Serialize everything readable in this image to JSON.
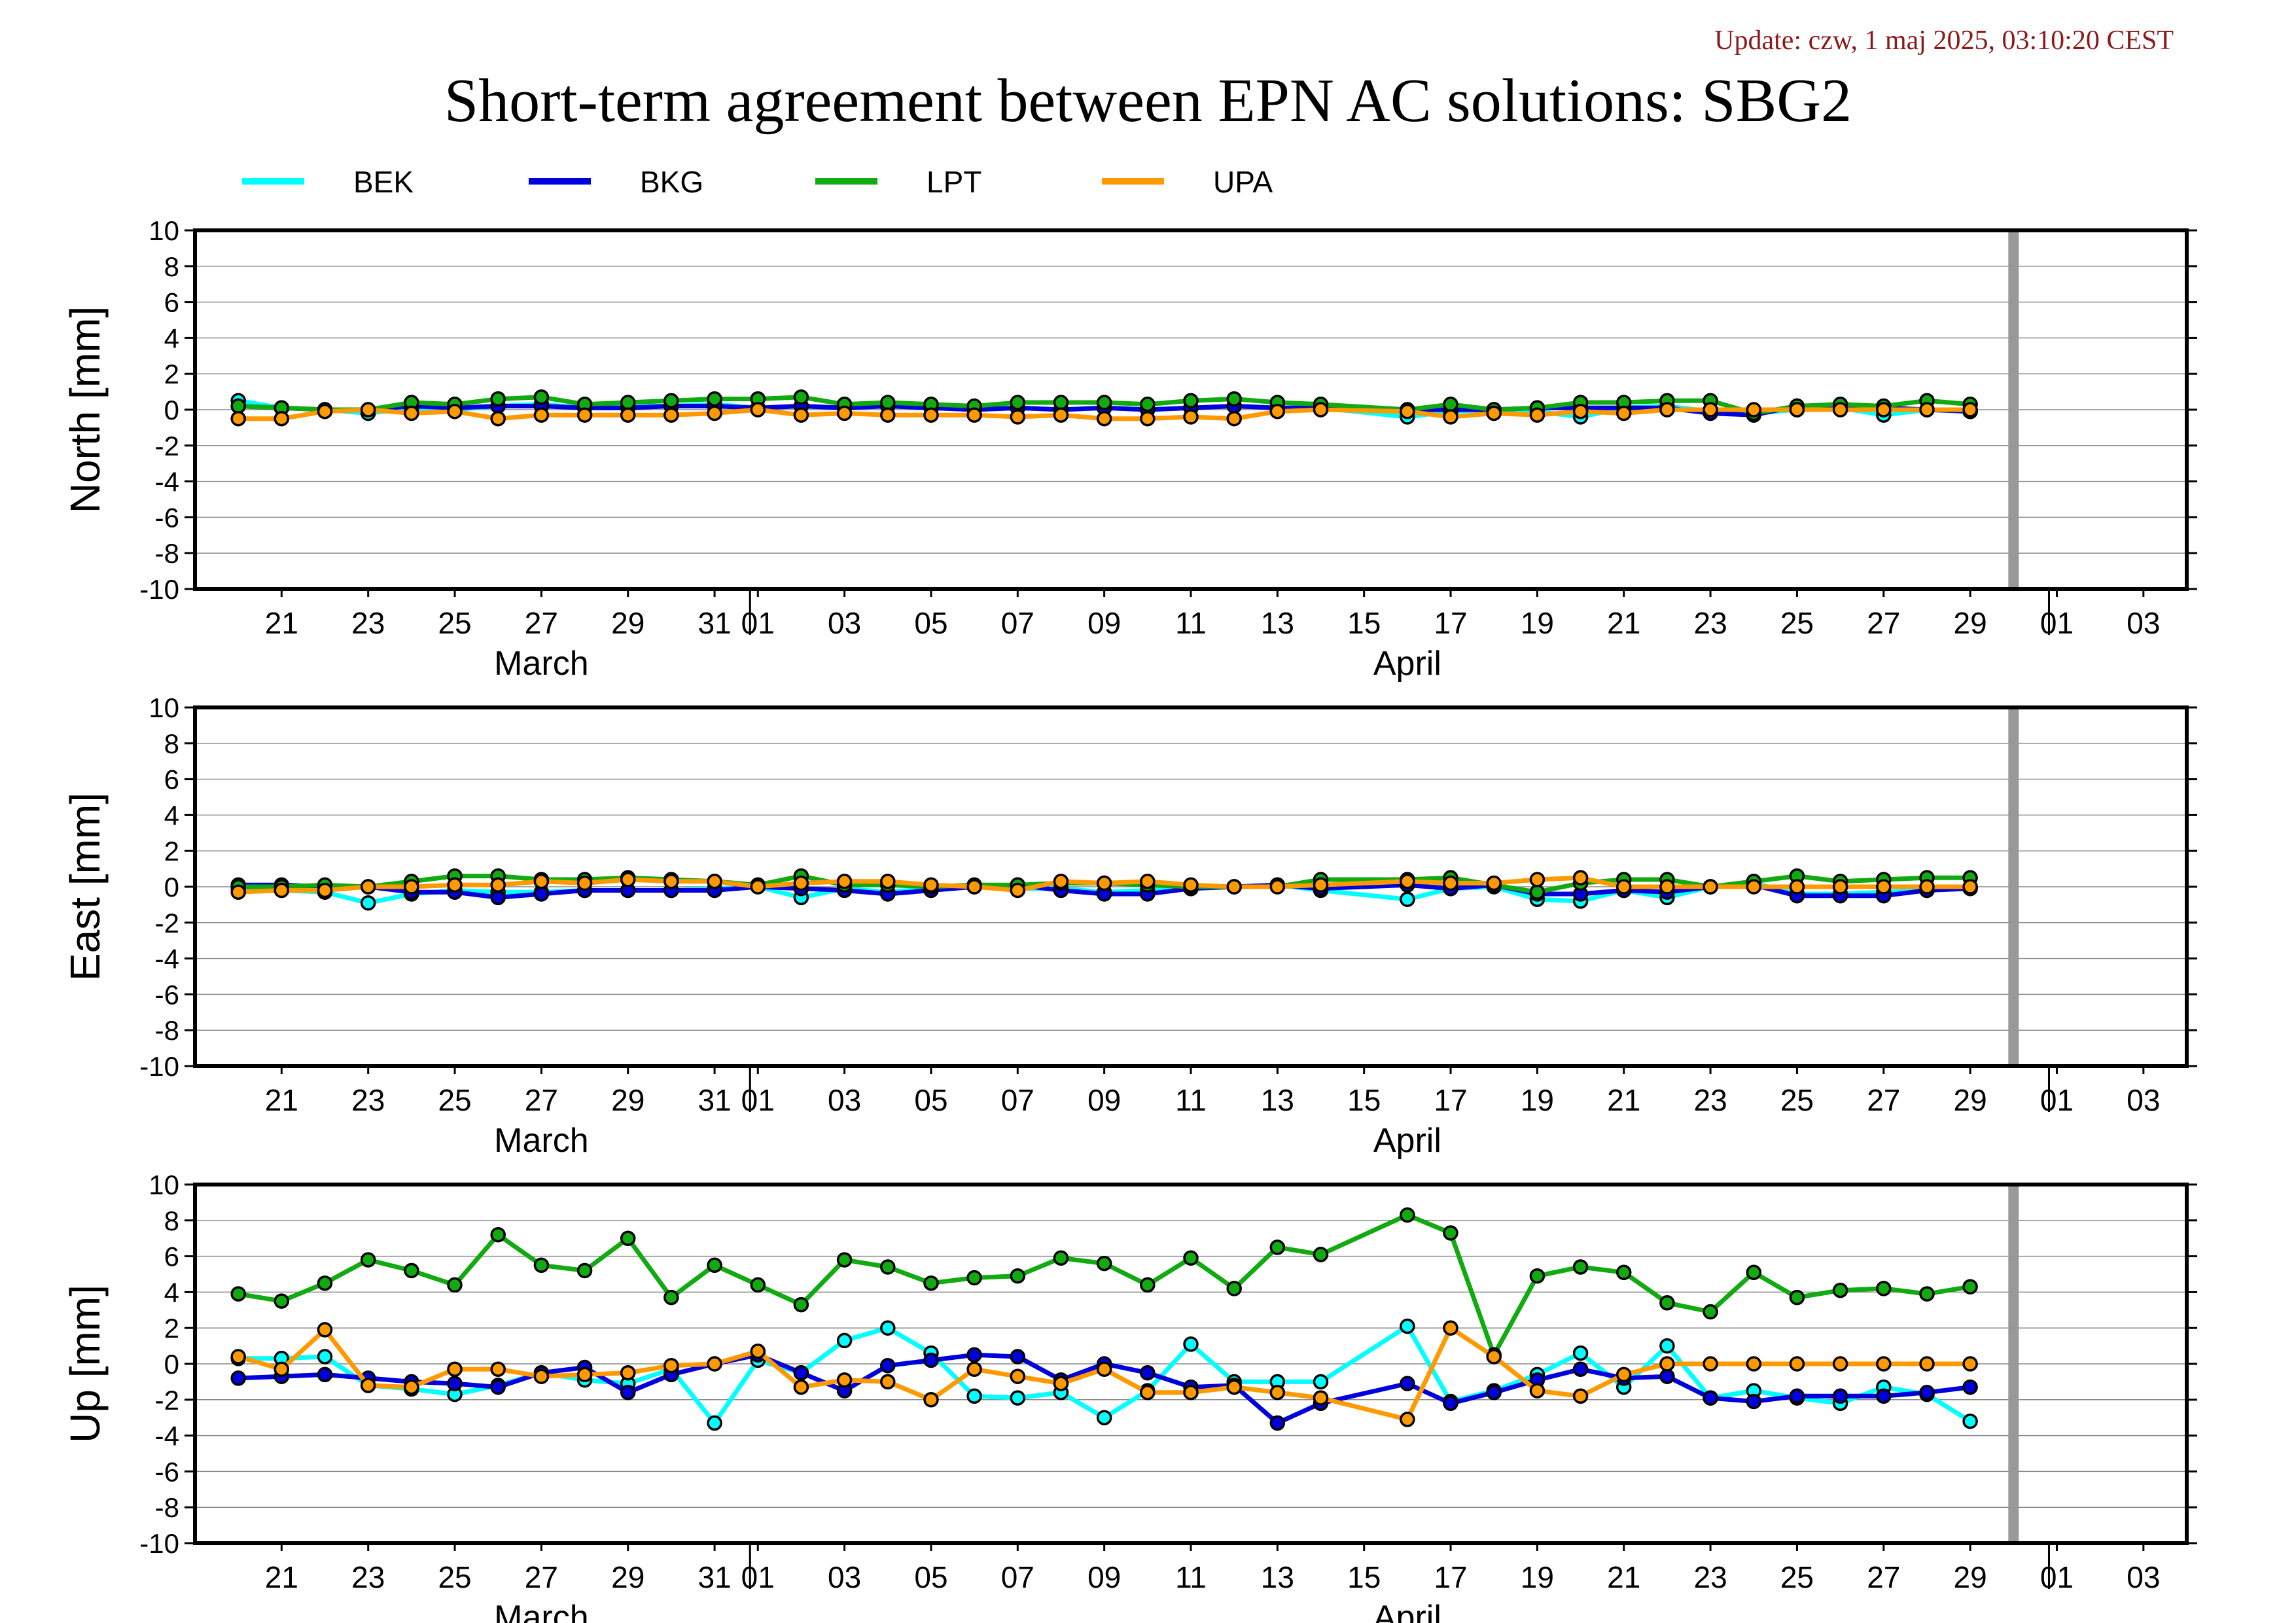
{
  "update": "Update: czw, 1 maj 2025, 03:10:20 CEST",
  "title": "Short-term agreement between EPN AC solutions: SBG2",
  "colors": {
    "BEK": "#00ffff",
    "BKG": "#0000dd",
    "LPT": "#11aa11",
    "UPA": "#ff9900"
  },
  "legend": [
    {
      "name": "BEK",
      "color": "#00ffff"
    },
    {
      "name": "BKG",
      "color": "#0000dd"
    },
    {
      "name": "LPT",
      "color": "#11aa11"
    },
    {
      "name": "UPA",
      "color": "#ff9900"
    }
  ],
  "chart_data": [
    {
      "type": "line",
      "ylabel": "North [mm]",
      "ylim": [
        -10,
        10
      ],
      "yticks": [
        -10,
        -8,
        -6,
        -4,
        -2,
        0,
        2,
        4,
        6,
        8,
        10
      ],
      "xlim": [
        "2025-03-19",
        "2025-05-04"
      ],
      "x_tick_labels": [
        "21",
        "23",
        "25",
        "27",
        "29",
        "31",
        "01",
        "03",
        "05",
        "07",
        "09",
        "11",
        "13",
        "15",
        "17",
        "19",
        "21",
        "23",
        "25",
        "27",
        "29",
        "01",
        "03"
      ],
      "month_labels": [
        "March",
        "April"
      ],
      "grid": true,
      "marker_line_date": "2025-04-30",
      "x": [
        "2025-03-20",
        "2025-03-21",
        "2025-03-22",
        "2025-03-23",
        "2025-03-24",
        "2025-03-25",
        "2025-03-26",
        "2025-03-27",
        "2025-03-28",
        "2025-03-29",
        "2025-03-30",
        "2025-03-31",
        "2025-04-01",
        "2025-04-02",
        "2025-04-03",
        "2025-04-04",
        "2025-04-05",
        "2025-04-06",
        "2025-04-07",
        "2025-04-08",
        "2025-04-09",
        "2025-04-10",
        "2025-04-11",
        "2025-04-12",
        "2025-04-13",
        "2025-04-14",
        "2025-04-16",
        "2025-04-17",
        "2025-04-18",
        "2025-04-19",
        "2025-04-20",
        "2025-04-21",
        "2025-04-22",
        "2025-04-23",
        "2025-04-24",
        "2025-04-25",
        "2025-04-26",
        "2025-04-27",
        "2025-04-28",
        "2025-04-29"
      ],
      "series": [
        {
          "name": "BEK",
          "values": [
            0.5,
            0.1,
            0.0,
            -0.2,
            0.1,
            0.0,
            0.2,
            0.3,
            0.1,
            0.2,
            0.2,
            0.3,
            0.1,
            0.2,
            0.1,
            0.2,
            0.1,
            0.0,
            0.1,
            0.0,
            0.1,
            0.0,
            0.1,
            0.2,
            0.1,
            0.1,
            -0.4,
            -0.1,
            0.0,
            -0.1,
            -0.4,
            0.1,
            0.2,
            -0.1,
            -0.2,
            0.0,
            0.1,
            -0.3,
            0.0,
            -0.1
          ]
        },
        {
          "name": "BKG",
          "values": [
            0.2,
            0.1,
            0.0,
            0.0,
            0.2,
            0.1,
            0.2,
            0.2,
            0.1,
            0.1,
            0.2,
            0.2,
            0.1,
            0.2,
            0.1,
            0.2,
            0.1,
            0.0,
            0.1,
            0.0,
            0.1,
            0.0,
            0.1,
            0.2,
            0.1,
            0.1,
            0.0,
            0.0,
            0.0,
            0.1,
            0.1,
            0.1,
            0.1,
            -0.2,
            -0.3,
            0.2,
            0.1,
            0.1,
            0.0,
            -0.1
          ]
        },
        {
          "name": "LPT",
          "values": [
            0.2,
            0.1,
            0.0,
            0.0,
            0.4,
            0.3,
            0.6,
            0.7,
            0.3,
            0.4,
            0.5,
            0.6,
            0.6,
            0.7,
            0.3,
            0.4,
            0.3,
            0.2,
            0.4,
            0.4,
            0.4,
            0.3,
            0.5,
            0.6,
            0.4,
            0.3,
            0.0,
            0.3,
            0.0,
            0.1,
            0.4,
            0.4,
            0.5,
            0.5,
            -0.2,
            0.2,
            0.3,
            0.2,
            0.5,
            0.3
          ]
        },
        {
          "name": "UPA",
          "values": [
            -0.5,
            -0.5,
            -0.1,
            0.0,
            -0.2,
            -0.1,
            -0.5,
            -0.3,
            -0.3,
            -0.3,
            -0.3,
            -0.2,
            0.0,
            -0.3,
            -0.2,
            -0.3,
            -0.3,
            -0.3,
            -0.4,
            -0.3,
            -0.5,
            -0.5,
            -0.4,
            -0.5,
            -0.1,
            0.0,
            -0.1,
            -0.4,
            -0.2,
            -0.3,
            -0.1,
            -0.2,
            0.0,
            0.0,
            0.0,
            0.0,
            0.0,
            0.0,
            0.0,
            0.0
          ]
        }
      ]
    },
    {
      "type": "line",
      "ylabel": "East [mm]",
      "ylim": [
        -10,
        10
      ],
      "yticks": [
        -10,
        -8,
        -6,
        -4,
        -2,
        0,
        2,
        4,
        6,
        8,
        10
      ],
      "xlim": [
        "2025-03-19",
        "2025-05-04"
      ],
      "x_tick_labels": [
        "21",
        "23",
        "25",
        "27",
        "29",
        "31",
        "01",
        "03",
        "05",
        "07",
        "09",
        "11",
        "13",
        "15",
        "17",
        "19",
        "21",
        "23",
        "25",
        "27",
        "29",
        "01",
        "03"
      ],
      "month_labels": [
        "March",
        "April"
      ],
      "grid": true,
      "marker_line_date": "2025-04-30",
      "x": [
        "2025-03-20",
        "2025-03-21",
        "2025-03-22",
        "2025-03-23",
        "2025-03-24",
        "2025-03-25",
        "2025-03-26",
        "2025-03-27",
        "2025-03-28",
        "2025-03-29",
        "2025-03-30",
        "2025-03-31",
        "2025-04-01",
        "2025-04-02",
        "2025-04-03",
        "2025-04-04",
        "2025-04-05",
        "2025-04-06",
        "2025-04-07",
        "2025-04-08",
        "2025-04-09",
        "2025-04-10",
        "2025-04-11",
        "2025-04-12",
        "2025-04-13",
        "2025-04-14",
        "2025-04-16",
        "2025-04-17",
        "2025-04-18",
        "2025-04-19",
        "2025-04-20",
        "2025-04-21",
        "2025-04-22",
        "2025-04-23",
        "2025-04-24",
        "2025-04-25",
        "2025-04-26",
        "2025-04-27",
        "2025-04-28",
        "2025-04-29"
      ],
      "series": [
        {
          "name": "BEK",
          "values": [
            -0.1,
            -0.2,
            -0.3,
            -0.9,
            -0.4,
            -0.2,
            -0.3,
            -0.3,
            -0.2,
            -0.2,
            -0.2,
            -0.1,
            0.0,
            -0.6,
            -0.1,
            -0.3,
            -0.1,
            0.0,
            -0.1,
            -0.1,
            -0.3,
            -0.2,
            -0.1,
            0.0,
            0.1,
            -0.2,
            -0.7,
            -0.1,
            0.0,
            -0.7,
            -0.8,
            -0.2,
            -0.6,
            0.0,
            0.2,
            -0.4,
            -0.4,
            -0.3,
            -0.2,
            0.0
          ]
        },
        {
          "name": "BKG",
          "values": [
            0.1,
            0.1,
            0.0,
            0.0,
            -0.3,
            -0.3,
            -0.6,
            -0.4,
            -0.2,
            -0.2,
            -0.2,
            -0.2,
            0.0,
            -0.1,
            -0.2,
            -0.4,
            -0.2,
            0.0,
            0.1,
            -0.2,
            -0.4,
            -0.4,
            -0.1,
            0.0,
            0.1,
            -0.1,
            0.1,
            -0.1,
            0.1,
            -0.4,
            -0.4,
            -0.2,
            -0.3,
            0.0,
            0.1,
            -0.5,
            -0.5,
            -0.5,
            -0.2,
            -0.1
          ]
        },
        {
          "name": "LPT",
          "values": [
            0.0,
            0.0,
            0.1,
            0.0,
            0.3,
            0.6,
            0.6,
            0.4,
            0.4,
            0.5,
            0.4,
            0.3,
            0.1,
            0.6,
            0.1,
            0.1,
            0.0,
            0.1,
            0.1,
            0.2,
            0.2,
            0.1,
            0.0,
            0.0,
            0.0,
            0.4,
            0.4,
            0.5,
            0.1,
            -0.3,
            0.2,
            0.4,
            0.4,
            0.0,
            0.3,
            0.6,
            0.3,
            0.4,
            0.5,
            0.5
          ]
        },
        {
          "name": "UPA",
          "values": [
            -0.3,
            -0.2,
            -0.2,
            0.0,
            0.0,
            0.1,
            0.1,
            0.3,
            0.2,
            0.4,
            0.3,
            0.3,
            0.0,
            0.2,
            0.3,
            0.3,
            0.1,
            0.0,
            -0.2,
            0.3,
            0.2,
            0.3,
            0.1,
            0.0,
            0.0,
            0.1,
            0.3,
            0.2,
            0.2,
            0.4,
            0.5,
            0.0,
            0.0,
            0.0,
            0.0,
            0.0,
            0.0,
            0.0,
            0.0,
            0.0
          ]
        }
      ]
    },
    {
      "type": "line",
      "ylabel": "Up [mm]",
      "ylim": [
        -10,
        10
      ],
      "yticks": [
        -10,
        -8,
        -6,
        -4,
        -2,
        0,
        2,
        4,
        6,
        8,
        10
      ],
      "xlim": [
        "2025-03-19",
        "2025-05-04"
      ],
      "x_tick_labels": [
        "21",
        "23",
        "25",
        "27",
        "29",
        "31",
        "01",
        "03",
        "05",
        "07",
        "09",
        "11",
        "13",
        "15",
        "17",
        "19",
        "21",
        "23",
        "25",
        "27",
        "29",
        "01",
        "03"
      ],
      "month_labels": [
        "March",
        "April"
      ],
      "grid": true,
      "marker_line_date": "2025-04-30",
      "x": [
        "2025-03-20",
        "2025-03-21",
        "2025-03-22",
        "2025-03-23",
        "2025-03-24",
        "2025-03-25",
        "2025-03-26",
        "2025-03-27",
        "2025-03-28",
        "2025-03-29",
        "2025-03-30",
        "2025-03-31",
        "2025-04-01",
        "2025-04-02",
        "2025-04-03",
        "2025-04-04",
        "2025-04-05",
        "2025-04-06",
        "2025-04-07",
        "2025-04-08",
        "2025-04-09",
        "2025-04-10",
        "2025-04-11",
        "2025-04-12",
        "2025-04-13",
        "2025-04-14",
        "2025-04-16",
        "2025-04-17",
        "2025-04-18",
        "2025-04-19",
        "2025-04-20",
        "2025-04-21",
        "2025-04-22",
        "2025-04-23",
        "2025-04-24",
        "2025-04-25",
        "2025-04-26",
        "2025-04-27",
        "2025-04-28",
        "2025-04-29"
      ],
      "series": [
        {
          "name": "BEK",
          "values": [
            0.3,
            0.3,
            0.4,
            -1.2,
            -1.4,
            -1.7,
            -1.2,
            -0.5,
            -0.9,
            -1.1,
            -0.3,
            -3.3,
            0.2,
            -0.5,
            1.3,
            2.0,
            0.6,
            -1.8,
            -1.9,
            -1.6,
            -3.0,
            -1.5,
            1.1,
            -1.0,
            -1.0,
            -1.0,
            2.1,
            -2.1,
            -1.5,
            -0.6,
            0.6,
            -1.3,
            1.0,
            -1.9,
            -1.5,
            -1.9,
            -2.2,
            -1.3,
            -1.7,
            -3.2
          ]
        },
        {
          "name": "BKG",
          "values": [
            -0.8,
            -0.7,
            -0.6,
            -0.8,
            -1.0,
            -1.1,
            -1.3,
            -0.5,
            -0.2,
            -1.6,
            -0.6,
            0.0,
            0.5,
            -0.5,
            -1.5,
            -0.1,
            0.2,
            0.5,
            0.4,
            -0.9,
            0.0,
            -0.5,
            -1.3,
            -1.2,
            -3.3,
            -2.2,
            -1.1,
            -2.2,
            -1.6,
            -0.9,
            -0.3,
            -0.8,
            -0.7,
            -1.9,
            -2.1,
            -1.8,
            -1.8,
            -1.8,
            -1.6,
            -1.3
          ]
        },
        {
          "name": "LPT",
          "values": [
            3.9,
            3.5,
            4.5,
            5.8,
            5.2,
            4.4,
            7.2,
            5.5,
            5.2,
            7.0,
            3.7,
            5.5,
            4.4,
            3.3,
            5.8,
            5.4,
            4.5,
            4.8,
            4.9,
            5.9,
            5.6,
            4.4,
            5.9,
            4.2,
            6.5,
            6.1,
            8.3,
            7.3,
            0.5,
            4.9,
            5.4,
            5.1,
            3.4,
            2.9,
            5.1,
            3.7,
            4.1,
            4.2,
            3.9,
            4.3
          ]
        },
        {
          "name": "UPA",
          "values": [
            0.4,
            -0.3,
            1.9,
            -1.2,
            -1.3,
            -0.3,
            -0.3,
            -0.7,
            -0.6,
            -0.5,
            -0.1,
            0.0,
            0.7,
            -1.3,
            -0.9,
            -1.0,
            -2.0,
            -0.3,
            -0.7,
            -1.1,
            -0.3,
            -1.6,
            -1.6,
            -1.3,
            -1.6,
            -1.9,
            -3.1,
            2.0,
            0.4,
            -1.5,
            -1.8,
            -0.6,
            0.0,
            0.0,
            0.0,
            0.0,
            0.0,
            0.0,
            0.0,
            0.0
          ]
        }
      ]
    }
  ]
}
